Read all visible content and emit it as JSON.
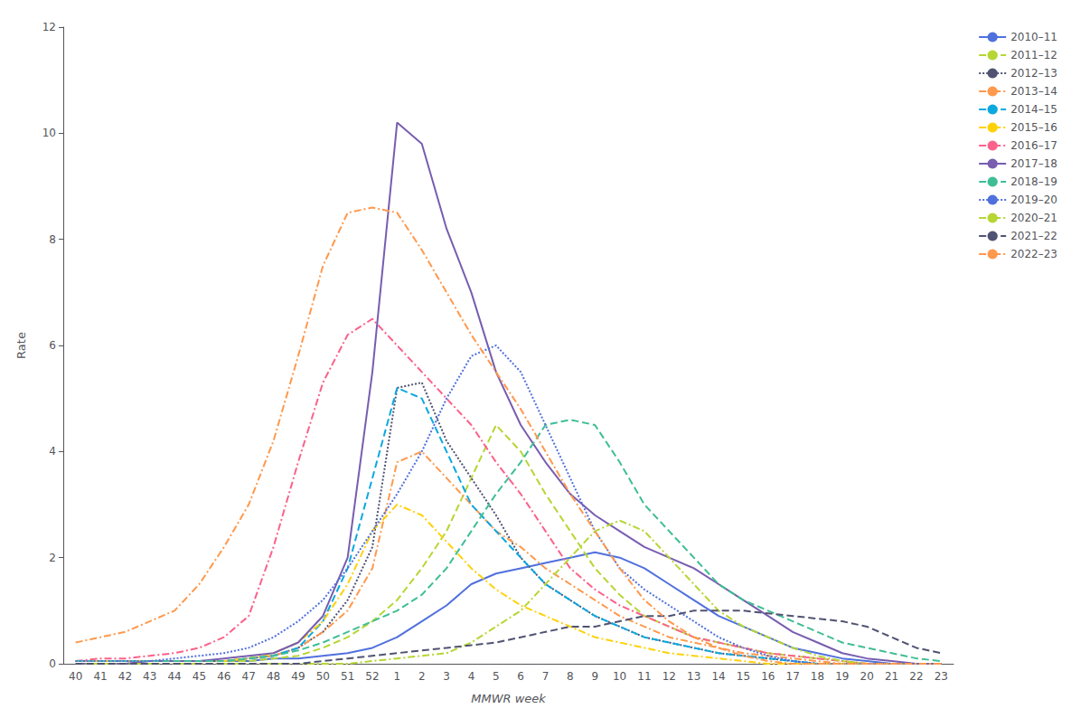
{
  "chart_data": {
    "type": "line",
    "xlabel": "MMWR week",
    "ylabel": "Rate",
    "ylim": [
      0,
      12
    ],
    "yticks": [
      0,
      2,
      4,
      6,
      8,
      10,
      12
    ],
    "grid": false,
    "legend": "upper right",
    "categories": [
      "40",
      "41",
      "42",
      "43",
      "44",
      "45",
      "46",
      "47",
      "48",
      "49",
      "50",
      "51",
      "52",
      "1",
      "2",
      "3",
      "4",
      "5",
      "6",
      "7",
      "8",
      "9",
      "10",
      "11",
      "12",
      "13",
      "14",
      "15",
      "16",
      "17",
      "18",
      "19",
      "20",
      "21",
      "22",
      "23"
    ],
    "series": [
      {
        "name": "2010–11",
        "line_style": "solid",
        "values": [
          0.05,
          0.05,
          0.05,
          0.05,
          0.05,
          0.05,
          0.05,
          0.05,
          0.1,
          0.1,
          0.15,
          0.2,
          0.3,
          0.5,
          0.8,
          1.1,
          1.5,
          1.7,
          1.8,
          1.9,
          2.0,
          2.1,
          2.0,
          1.8,
          1.5,
          1.2,
          0.9,
          0.7,
          0.5,
          0.3,
          0.2,
          0.1,
          0.05,
          0.0,
          0.0,
          0.0
        ]
      },
      {
        "name": "2011–12",
        "line_style": "dashed",
        "values": [
          0.05,
          0.05,
          0.05,
          0.05,
          0.05,
          0.05,
          0.05,
          0.05,
          0.1,
          0.15,
          0.3,
          0.5,
          0.8,
          1.2,
          1.8,
          2.5,
          3.5,
          4.5,
          4.0,
          3.2,
          2.5,
          1.8,
          1.3,
          0.9,
          0.7,
          0.5,
          0.4,
          0.3,
          0.2,
          0.15,
          0.1,
          0.05,
          0.0,
          0.0,
          0.0,
          0.0
        ]
      },
      {
        "name": "2012–13",
        "line_style": "dotted",
        "values": [
          0.05,
          0.05,
          0.05,
          0.05,
          0.05,
          0.05,
          0.05,
          0.1,
          0.15,
          0.3,
          0.6,
          1.2,
          2.2,
          5.2,
          5.3,
          4.2,
          3.5,
          2.8,
          2.0,
          1.5,
          1.2,
          0.9,
          0.7,
          0.5,
          0.4,
          0.3,
          0.2,
          0.15,
          0.1,
          0.05,
          0.0,
          0.0,
          0.0,
          0.0,
          0.0,
          0.0
        ]
      },
      {
        "name": "2013–14",
        "line_style": "dashdot",
        "values": [
          0.05,
          0.05,
          0.05,
          0.05,
          0.05,
          0.05,
          0.05,
          0.1,
          0.15,
          0.3,
          0.6,
          1.0,
          1.8,
          3.8,
          4.0,
          3.5,
          3.0,
          2.5,
          2.2,
          1.8,
          1.5,
          1.2,
          0.9,
          0.7,
          0.5,
          0.4,
          0.3,
          0.2,
          0.15,
          0.1,
          0.05,
          0.0,
          0.0,
          0.0,
          0.0,
          0.0
        ]
      },
      {
        "name": "2014–15",
        "line_style": "dashed",
        "values": [
          0.05,
          0.05,
          0.05,
          0.05,
          0.05,
          0.05,
          0.05,
          0.1,
          0.15,
          0.3,
          0.8,
          1.8,
          3.5,
          5.2,
          5.0,
          4.0,
          3.0,
          2.5,
          2.0,
          1.5,
          1.2,
          0.9,
          0.7,
          0.5,
          0.4,
          0.3,
          0.2,
          0.15,
          0.1,
          0.05,
          0.0,
          0.0,
          0.0,
          0.0,
          0.0,
          0.0
        ]
      },
      {
        "name": "2015–16",
        "line_style": "dashdot",
        "values": [
          0.05,
          0.05,
          0.05,
          0.05,
          0.05,
          0.05,
          0.05,
          0.1,
          0.2,
          0.4,
          0.8,
          1.5,
          2.5,
          3.0,
          2.8,
          2.3,
          1.8,
          1.4,
          1.1,
          0.9,
          0.7,
          0.5,
          0.4,
          0.3,
          0.2,
          0.15,
          0.1,
          0.05,
          0.0,
          0.0,
          0.0,
          0.0,
          0.0,
          0.0,
          0.0,
          0.0
        ]
      },
      {
        "name": "2016–17",
        "line_style": "dashdot",
        "values": [
          0.05,
          0.1,
          0.1,
          0.15,
          0.2,
          0.3,
          0.5,
          0.9,
          2.2,
          3.8,
          5.3,
          6.2,
          6.5,
          6.0,
          5.5,
          5.0,
          4.5,
          3.8,
          3.2,
          2.5,
          1.8,
          1.4,
          1.1,
          0.9,
          0.7,
          0.5,
          0.4,
          0.3,
          0.2,
          0.15,
          0.1,
          0.05,
          0.0,
          0.0,
          0.0,
          0.0
        ]
      },
      {
        "name": "2017–18",
        "line_style": "solid",
        "values": [
          0.0,
          0.0,
          0.0,
          0.05,
          0.05,
          0.05,
          0.1,
          0.15,
          0.2,
          0.4,
          0.9,
          2.0,
          5.5,
          10.2,
          9.8,
          8.2,
          7.0,
          5.5,
          4.5,
          3.8,
          3.2,
          2.8,
          2.5,
          2.2,
          2.0,
          1.8,
          1.5,
          1.2,
          0.9,
          0.6,
          0.4,
          0.2,
          0.1,
          0.05,
          0.0,
          0.0
        ]
      },
      {
        "name": "2018–19",
        "line_style": "dashed",
        "values": [
          0.05,
          0.05,
          0.05,
          0.05,
          0.05,
          0.05,
          0.05,
          0.1,
          0.15,
          0.25,
          0.4,
          0.6,
          0.8,
          1.0,
          1.3,
          1.8,
          2.5,
          3.2,
          3.8,
          4.5,
          4.6,
          4.5,
          3.8,
          3.0,
          2.5,
          2.0,
          1.5,
          1.2,
          1.0,
          0.8,
          0.6,
          0.4,
          0.3,
          0.2,
          0.1,
          0.05
        ]
      },
      {
        "name": "2019–20",
        "line_style": "dotted",
        "values": [
          0.05,
          0.05,
          0.05,
          0.05,
          0.1,
          0.15,
          0.2,
          0.3,
          0.5,
          0.8,
          1.2,
          1.8,
          2.5,
          3.2,
          4.0,
          5.0,
          5.8,
          6.0,
          5.5,
          4.5,
          3.5,
          2.5,
          1.8,
          1.4,
          1.1,
          0.8,
          0.5,
          0.3,
          0.15,
          0.05,
          0.0,
          0.0,
          0.0,
          0.0,
          0.0,
          0.0
        ]
      },
      {
        "name": "2020–21",
        "line_style": "dashdot",
        "values": [
          0.0,
          0.0,
          0.0,
          0.0,
          0.0,
          0.0,
          0.0,
          0.0,
          0.0,
          0.0,
          0.0,
          0.0,
          0.05,
          0.1,
          0.15,
          0.2,
          0.4,
          0.7,
          1.0,
          1.5,
          2.0,
          2.5,
          2.7,
          2.5,
          2.0,
          1.5,
          1.0,
          0.7,
          0.5,
          0.3,
          0.15,
          0.05,
          0.0,
          0.0,
          0.0,
          0.0
        ]
      },
      {
        "name": "2021–22",
        "line_style": "dashed",
        "values": [
          0.0,
          0.0,
          0.0,
          0.0,
          0.0,
          0.0,
          0.0,
          0.0,
          0.0,
          0.0,
          0.05,
          0.1,
          0.15,
          0.2,
          0.25,
          0.3,
          0.35,
          0.4,
          0.5,
          0.6,
          0.7,
          0.7,
          0.8,
          0.9,
          0.9,
          1.0,
          1.0,
          1.0,
          0.95,
          0.9,
          0.85,
          0.8,
          0.7,
          0.5,
          0.3,
          0.2
        ]
      },
      {
        "name": "2022–23",
        "line_style": "dashdot",
        "values": [
          0.4,
          0.5,
          0.6,
          0.8,
          1.0,
          1.5,
          2.2,
          3.0,
          4.2,
          5.8,
          7.5,
          8.5,
          8.6,
          8.5,
          7.8,
          7.0,
          6.2,
          5.5,
          4.8,
          4.0,
          3.2,
          2.5,
          1.8,
          1.2,
          0.8,
          0.5,
          0.3,
          0.15,
          0.05,
          0.0,
          0.0,
          0.0,
          0.0,
          0.0,
          0.0,
          0.0
        ]
      }
    ]
  }
}
